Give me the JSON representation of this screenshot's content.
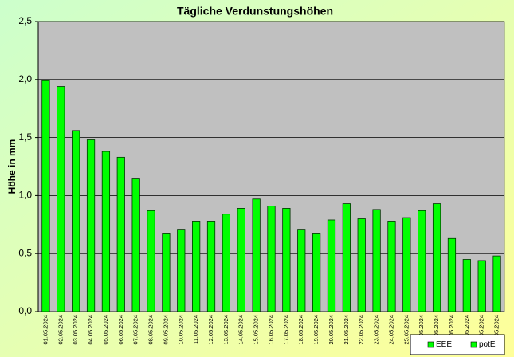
{
  "chart_data": {
    "type": "bar",
    "title": "Tägliche Verdunstungshöhen",
    "y_label": "Höhe in mm",
    "categories": [
      "01.05.2024",
      "02.05.2024",
      "03.05.2024",
      "04.05.2024",
      "05.05.2024",
      "06.05.2024",
      "07.05.2024",
      "08.05.2024",
      "09.05.2024",
      "10.05.2024",
      "11.05.2024",
      "12.05.2024",
      "13.05.2024",
      "14.05.2024",
      "15.05.2024",
      "16.05.2024",
      "17.05.2024",
      "18.05.2024",
      "19.05.2024",
      "20.05.2024",
      "21.05.2024",
      "22.05.2024",
      "23.05.2024",
      "24.05.2024",
      "25.05.2024",
      "26.05.2024",
      "27.05.2024",
      "28.05.2024",
      "29.05.2024",
      "30.05.2024",
      "31.05.2024"
    ],
    "series": [
      {
        "name": "EEE",
        "color": "#00ff00",
        "values": [
          1.99,
          1.94,
          1.56,
          1.48,
          1.38,
          1.33,
          1.15,
          0.87,
          0.67,
          0.71,
          0.78,
          0.78,
          0.84,
          0.89,
          0.97,
          0.91,
          0.89,
          0.71,
          0.67,
          0.79,
          0.93,
          0.8,
          0.88,
          0.78,
          0.81,
          0.87,
          0.93,
          0.63,
          0.45,
          0.44,
          0.48
        ]
      }
    ],
    "legend_entries": [
      {
        "name": "EEE",
        "color": "#00ff00"
      },
      {
        "name": "potE",
        "color": "#00ff00"
      }
    ],
    "ylim": [
      0,
      2.5
    ],
    "yticks": [
      {
        "value": 0,
        "label": "0,0"
      },
      {
        "value": 0.5,
        "label": "0,5"
      },
      {
        "value": 1,
        "label": "1,0"
      },
      {
        "value": 1.5,
        "label": "1,5"
      },
      {
        "value": 2,
        "label": "2,0"
      },
      {
        "value": 2.5,
        "label": "2,5"
      }
    ],
    "grid": true
  }
}
